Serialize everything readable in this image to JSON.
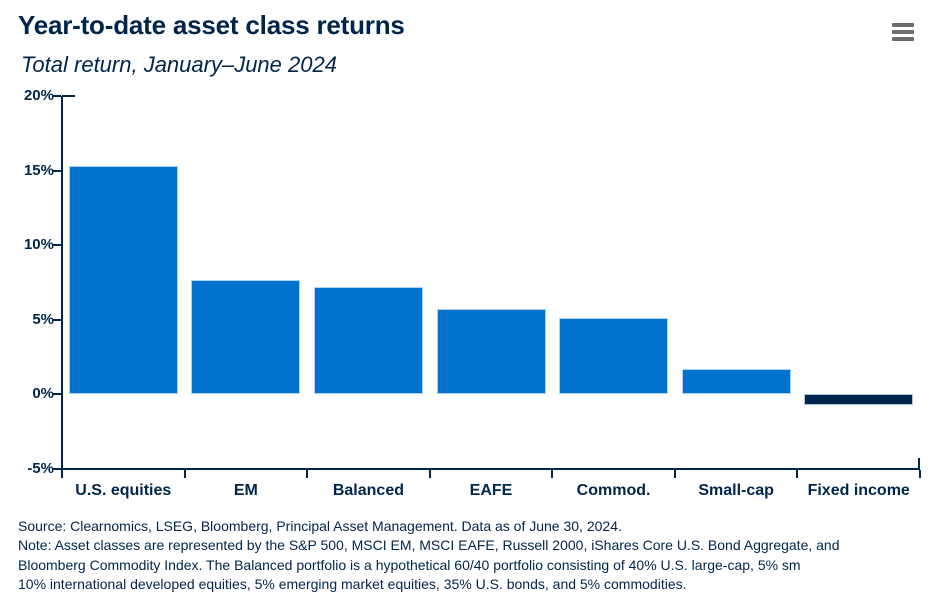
{
  "header": {
    "title": "Year-to-date asset class returns",
    "subtitle": "Total return, January–June 2024",
    "menu_icon": "hamburger-menu-icon"
  },
  "chart_data": {
    "type": "bar",
    "title": "Year-to-date asset class returns",
    "subtitle": "Total return, January–June 2024",
    "categories": [
      "U.S. equities",
      "EM",
      "Balanced",
      "EAFE",
      "Commod.",
      "Small-cap",
      "Fixed income"
    ],
    "values": [
      15.3,
      7.7,
      7.2,
      5.7,
      5.1,
      1.7,
      -0.7
    ],
    "unit": "%",
    "ylabel": "",
    "xlabel": "",
    "ylim": [
      -5,
      20
    ],
    "yticks": [
      20,
      15,
      10,
      5,
      0,
      -5
    ],
    "ytick_labels": [
      "20%",
      "15%",
      "10%",
      "5%",
      "0%",
      "-5%"
    ],
    "grid": false,
    "legend": false,
    "bar_color_positive": "#0072CE",
    "bar_color_negative": "#00254B"
  },
  "footer": {
    "lines": [
      "Source: Clearnomics, LSEG, Bloomberg, Principal Asset Management. Data as of June 30, 2024.",
      "Note: Asset classes are represented by the S&P 500, MSCI EM, MSCI EAFE, Russell 2000, iShares Core U.S. Bond Aggregate, and",
      "Bloomberg Commodity Index. The Balanced portfolio is a hypothetical 60/40 portfolio consisting of 40% U.S. large-cap, 5% sm",
      "10% international developed equities, 5% emerging market equities, 35% U.S. bonds, and 5% commodities."
    ]
  },
  "colors": {
    "navy": "#00254B",
    "bar_blue": "#0072CE",
    "menu_gray": "#6C6C6C",
    "background": "#FFFFFF"
  }
}
